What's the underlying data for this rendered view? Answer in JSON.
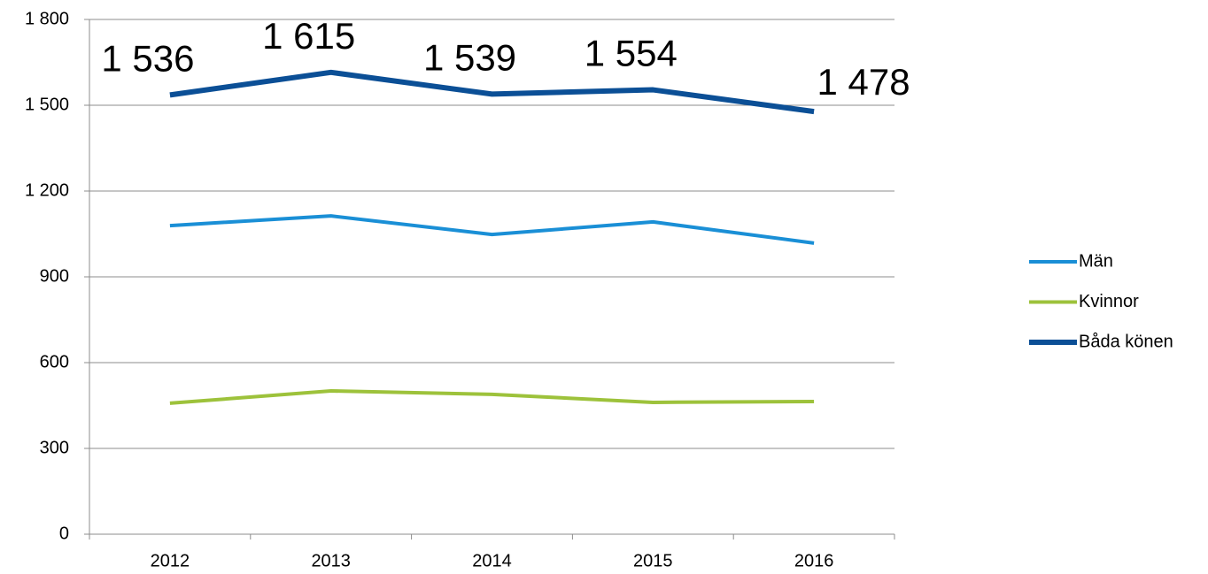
{
  "chart_data": {
    "type": "line",
    "categories": [
      "2012",
      "2013",
      "2014",
      "2015",
      "2016"
    ],
    "series": [
      {
        "name": "Män",
        "color": "#1a8fd6",
        "values": [
          1079,
          1113,
          1048,
          1092,
          1018
        ]
      },
      {
        "name": "Kvinnor",
        "color": "#9dc23b",
        "values": [
          458,
          501,
          489,
          461,
          464
        ]
      },
      {
        "name": "Båda könen",
        "color": "#0b4f96",
        "values": [
          1536,
          1615,
          1539,
          1554,
          1478
        ],
        "value_labels": [
          "1 536",
          "1 615",
          "1 539",
          "1 554",
          "1 478"
        ]
      }
    ],
    "ylim": [
      0,
      1800
    ],
    "yticks": [
      0,
      300,
      600,
      900,
      {
        "value": 1200,
        "label": "1 200"
      },
      {
        "value": 1500,
        "label": "1 500"
      },
      {
        "value": 1800,
        "label": "1 800"
      }
    ],
    "grid": true,
    "legend": "right"
  }
}
